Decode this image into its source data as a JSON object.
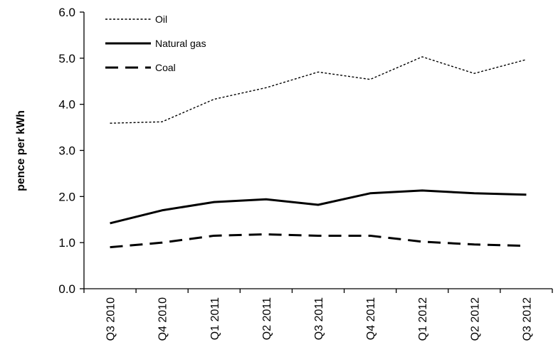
{
  "chart_data": {
    "type": "line",
    "title": "",
    "xlabel": "",
    "ylabel": "pence per kWh",
    "ylim": [
      0.0,
      6.0
    ],
    "yticks": [
      "0.0",
      "1.0",
      "2.0",
      "3.0",
      "4.0",
      "5.0",
      "6.0"
    ],
    "grid": false,
    "legend_position": "top-left",
    "categories": [
      "Q3 2010",
      "Q4 2010",
      "Q1 2011",
      "Q2 2011",
      "Q3 2011",
      "Q4 2011",
      "Q1 2012",
      "Q2 2012",
      "Q3 2012"
    ],
    "series": [
      {
        "name": "Oil",
        "style": "dotted",
        "color": "#000000",
        "values": [
          3.59,
          3.62,
          4.11,
          4.36,
          4.7,
          4.54,
          5.03,
          4.67,
          4.97
        ]
      },
      {
        "name": "Natural gas",
        "style": "solid",
        "color": "#000000",
        "values": [
          1.42,
          1.7,
          1.88,
          1.94,
          1.82,
          2.07,
          2.13,
          2.07,
          2.04
        ]
      },
      {
        "name": "Coal",
        "style": "dashed",
        "color": "#000000",
        "values": [
          0.9,
          1.0,
          1.15,
          1.18,
          1.15,
          1.15,
          1.02,
          0.96,
          0.93
        ]
      }
    ]
  }
}
